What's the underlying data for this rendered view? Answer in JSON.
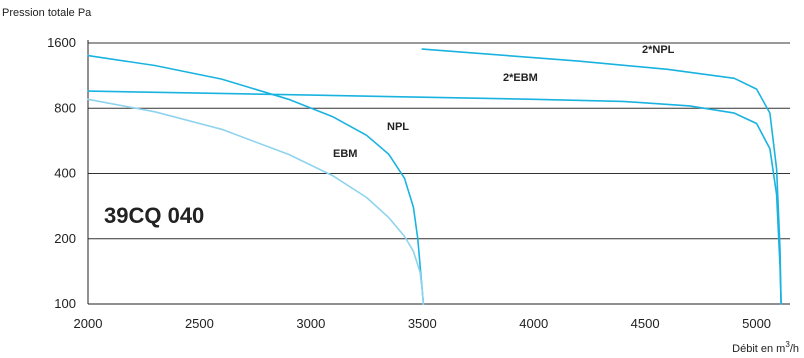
{
  "chart_data": {
    "type": "line",
    "title": "",
    "annotation": "39CQ 040",
    "xlabel": "Débit en m",
    "xlabel_sup": "3",
    "xlabel_suffix": "/h",
    "ylabel": "Pression totale Pa",
    "xlim": [
      2000,
      5150
    ],
    "ylim": [
      100,
      1600
    ],
    "yscale": "log",
    "grid": true,
    "x_ticks": [
      2000,
      2500,
      3000,
      3500,
      4000,
      4500,
      5000
    ],
    "y_ticks": [
      100,
      200,
      400,
      800,
      1600
    ],
    "series": [
      {
        "name": "NPL",
        "color": "#1ab3e0",
        "x": [
          2000,
          2300,
          2600,
          2900,
          3100,
          3250,
          3350,
          3420,
          3460,
          3480,
          3490,
          3500,
          3505
        ],
        "y": [
          1400,
          1260,
          1090,
          880,
          730,
          600,
          490,
          380,
          280,
          200,
          150,
          115,
          100
        ]
      },
      {
        "name": "EBM",
        "color": "#8fd3ee",
        "x": [
          2000,
          2300,
          2600,
          2900,
          3100,
          3250,
          3350,
          3420,
          3460,
          3490,
          3500,
          3505
        ],
        "y": [
          880,
          770,
          640,
          490,
          390,
          310,
          250,
          205,
          175,
          140,
          115,
          100
        ]
      },
      {
        "name": "2*NPL",
        "color": "#1ab3e0",
        "x": [
          3500,
          3800,
          4200,
          4600,
          4900,
          5000,
          5060,
          5090,
          5105,
          5110
        ],
        "y": [
          1500,
          1420,
          1320,
          1210,
          1100,
          980,
          760,
          420,
          180,
          100
        ]
      },
      {
        "name": "2*EBM",
        "color": "#1ab3e0",
        "x": [
          2000,
          2500,
          3000,
          3500,
          4000,
          4400,
          4700,
          4900,
          5000,
          5060,
          5090,
          5105,
          5110
        ],
        "y": [
          960,
          940,
          920,
          900,
          880,
          860,
          820,
          760,
          680,
          520,
          320,
          150,
          100
        ]
      }
    ]
  }
}
